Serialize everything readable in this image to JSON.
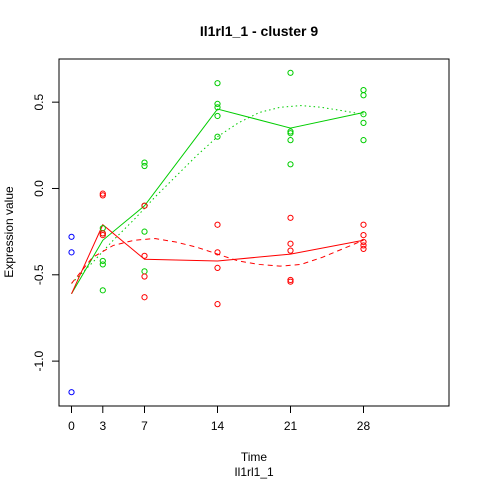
{
  "chart_data": {
    "type": "scatter",
    "title": "Il1rl1_1 - cluster 9",
    "xlabel": "Time",
    "sublabel": "Il1rl1_1",
    "ylabel": "Expression value",
    "xlim": [
      -1.2,
      36.2
    ],
    "ylim": [
      -1.26,
      0.75
    ],
    "x_ticks": [
      0,
      3,
      7,
      14,
      21,
      28
    ],
    "x_tick_labels": [
      "0",
      "3",
      "7",
      "14",
      "21",
      "28"
    ],
    "y_ticks": [
      -1.0,
      -0.5,
      0.0,
      0.5
    ],
    "y_tick_labels": [
      "-1.0",
      "-0.5",
      "0.0",
      "0.5"
    ],
    "grid": false,
    "legend": "none",
    "points": [
      {
        "color": "#0000ff",
        "x": [
          0,
          0,
          0
        ],
        "y": [
          -0.28,
          -0.37,
          -1.18
        ]
      },
      {
        "color": "#00cd00",
        "x": [
          3,
          3,
          3,
          3,
          3,
          7,
          7,
          7,
          7,
          7,
          14,
          14,
          14,
          14,
          14,
          21,
          21,
          21,
          21,
          21,
          28,
          28,
          28,
          28,
          28
        ],
        "y": [
          -0.23,
          -0.26,
          -0.42,
          -0.44,
          -0.59,
          0.15,
          0.13,
          -0.1,
          -0.25,
          -0.48,
          0.61,
          0.49,
          0.47,
          0.42,
          0.3,
          0.67,
          0.33,
          0.32,
          0.28,
          0.14,
          0.57,
          0.54,
          0.43,
          0.38,
          0.28
        ]
      },
      {
        "color": "#ff0000",
        "x": [
          3,
          3,
          3,
          3,
          7,
          7,
          7,
          7,
          14,
          14,
          14,
          14,
          21,
          21,
          21,
          21,
          21,
          28,
          28,
          28,
          28,
          28
        ],
        "y": [
          -0.03,
          -0.04,
          -0.26,
          -0.27,
          -0.1,
          -0.39,
          -0.51,
          -0.63,
          -0.21,
          -0.37,
          -0.46,
          -0.67,
          -0.17,
          -0.32,
          -0.36,
          -0.53,
          -0.54,
          -0.21,
          -0.27,
          -0.31,
          -0.33,
          -0.35
        ]
      }
    ],
    "series": [
      {
        "color": "#00cd00",
        "style": "solid",
        "x": [
          0,
          3,
          7,
          14,
          21,
          28
        ],
        "y": [
          -0.61,
          -0.3,
          -0.1,
          0.46,
          0.35,
          0.44
        ]
      },
      {
        "color": "#00cd00",
        "style": "dotted",
        "x": [
          0,
          2,
          4,
          6,
          8,
          10,
          12,
          14,
          16,
          18,
          20,
          22,
          24,
          26,
          28
        ],
        "y": [
          -0.55,
          -0.43,
          -0.3,
          -0.18,
          -0.05,
          0.07,
          0.19,
          0.3,
          0.38,
          0.44,
          0.47,
          0.48,
          0.47,
          0.45,
          0.43
        ]
      },
      {
        "color": "#ff0000",
        "style": "solid",
        "x": [
          0,
          3,
          7,
          14,
          21,
          28
        ],
        "y": [
          -0.61,
          -0.21,
          -0.41,
          -0.42,
          -0.38,
          -0.3
        ]
      },
      {
        "color": "#ff0000",
        "style": "dashed",
        "x": [
          0,
          2,
          4,
          6,
          8,
          10,
          12,
          14,
          16,
          18,
          20,
          22,
          24,
          26,
          28
        ],
        "y": [
          -0.55,
          -0.4,
          -0.33,
          -0.3,
          -0.29,
          -0.31,
          -0.34,
          -0.38,
          -0.42,
          -0.44,
          -0.45,
          -0.44,
          -0.4,
          -0.35,
          -0.3
        ]
      }
    ]
  }
}
